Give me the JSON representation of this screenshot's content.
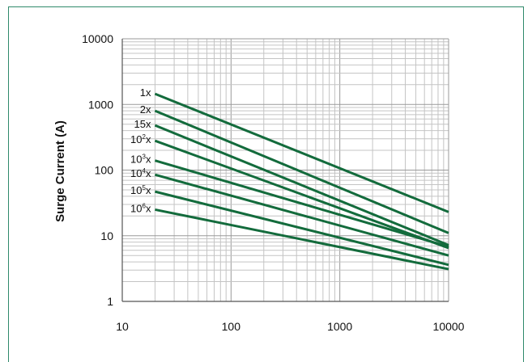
{
  "chart_data": {
    "type": "line",
    "title": "",
    "xlabel": "",
    "ylabel": "Surge Current (A)",
    "x_scale": "log",
    "y_scale": "log",
    "xlim": [
      10,
      10000
    ],
    "ylim": [
      1,
      10000
    ],
    "x_ticks": [
      "10",
      "100",
      "1000",
      "10000"
    ],
    "y_ticks": [
      "10000",
      "1000",
      "100",
      "10",
      "1"
    ],
    "grid": true,
    "series": [
      {
        "name": "1x",
        "label_base": "1",
        "label_sup": "",
        "label_tail": "x",
        "color": "#136b3c",
        "x": [
          20,
          10000
        ],
        "y": [
          1450,
          23
        ]
      },
      {
        "name": "2x",
        "label_base": "2",
        "label_sup": "",
        "label_tail": "x",
        "color": "#136b3c",
        "x": [
          20,
          10000
        ],
        "y": [
          800,
          11
        ]
      },
      {
        "name": "15x",
        "label_base": "15",
        "label_sup": "",
        "label_tail": "x",
        "color": "#136b3c",
        "x": [
          20,
          10000
        ],
        "y": [
          480,
          7.2
        ]
      },
      {
        "name": "10^2x",
        "label_base": "10",
        "label_sup": "2",
        "label_tail": "x",
        "color": "#136b3c",
        "x": [
          20,
          10000
        ],
        "y": [
          280,
          6.5
        ]
      },
      {
        "name": "10^3x",
        "label_base": "10",
        "label_sup": "3",
        "label_tail": "x",
        "color": "#136b3c",
        "x": [
          20,
          10000
        ],
        "y": [
          140,
          6.8
        ]
      },
      {
        "name": "10^4x",
        "label_base": "10",
        "label_sup": "4",
        "label_tail": "x",
        "color": "#136b3c",
        "x": [
          20,
          10000
        ],
        "y": [
          85,
          5.0
        ]
      },
      {
        "name": "10^5x",
        "label_base": "10",
        "label_sup": "5",
        "label_tail": "x",
        "color": "#136b3c",
        "x": [
          20,
          10000
        ],
        "y": [
          47,
          3.6
        ]
      },
      {
        "name": "10^6x",
        "label_base": "10",
        "label_sup": "6",
        "label_tail": "x",
        "color": "#136b3c",
        "x": [
          20,
          10000
        ],
        "y": [
          25,
          3.1
        ]
      }
    ]
  }
}
